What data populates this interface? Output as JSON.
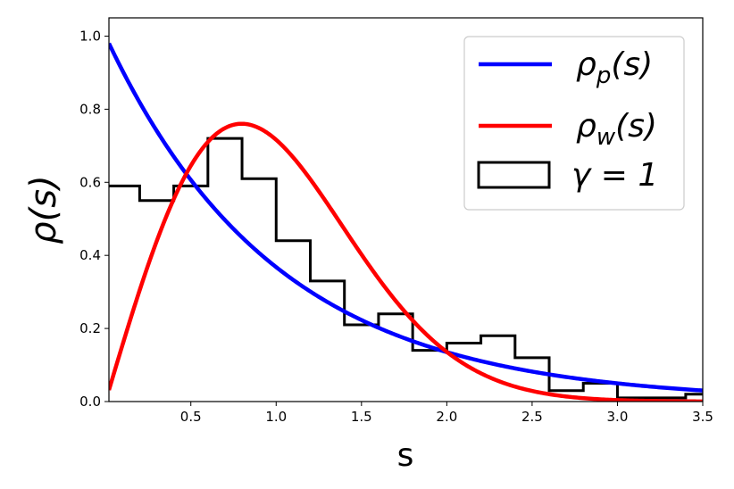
{
  "chart_data": {
    "type": "line",
    "xlabel": "s",
    "ylabel": "ρ(s)",
    "xlim": [
      0.02,
      3.5
    ],
    "ylim": [
      0.0,
      1.05
    ],
    "xticks": [
      0.5,
      1.0,
      1.5,
      2.0,
      2.5,
      3.0,
      3.5
    ],
    "xtick_labels": [
      "0.5",
      "1.0",
      "1.5",
      "2.0",
      "2.5",
      "3.0",
      "3.5"
    ],
    "yticks": [
      0.0,
      0.2,
      0.4,
      0.6,
      0.8,
      1.0
    ],
    "ytick_labels": [
      "0.0",
      "0.2",
      "0.4",
      "0.6",
      "0.8",
      "1.0"
    ],
    "legend_position": "top-right",
    "series": [
      {
        "name": "ρp(s)",
        "legend_label": "ρ_p(s)",
        "kind": "line",
        "color": "#0000ff",
        "function": "poisson"
      },
      {
        "name": "ρw(s)",
        "legend_label": "ρ_w(s)",
        "kind": "line",
        "color": "#ff0000",
        "function": "wigner"
      },
      {
        "name": "γ = 1",
        "legend_label": "γ = 1",
        "kind": "step-histogram",
        "color": "#000000",
        "bin_edges": [
          0.0,
          0.2,
          0.4,
          0.6,
          0.8,
          1.0,
          1.2,
          1.4,
          1.6,
          1.8,
          2.0,
          2.2,
          2.4,
          2.6,
          2.8,
          3.0,
          3.2,
          3.4,
          3.6
        ],
        "values": [
          0.59,
          0.55,
          0.59,
          0.72,
          0.61,
          0.44,
          0.33,
          0.21,
          0.24,
          0.14,
          0.16,
          0.18,
          0.12,
          0.03,
          0.05,
          0.01,
          0.01,
          0.02
        ]
      }
    ]
  }
}
